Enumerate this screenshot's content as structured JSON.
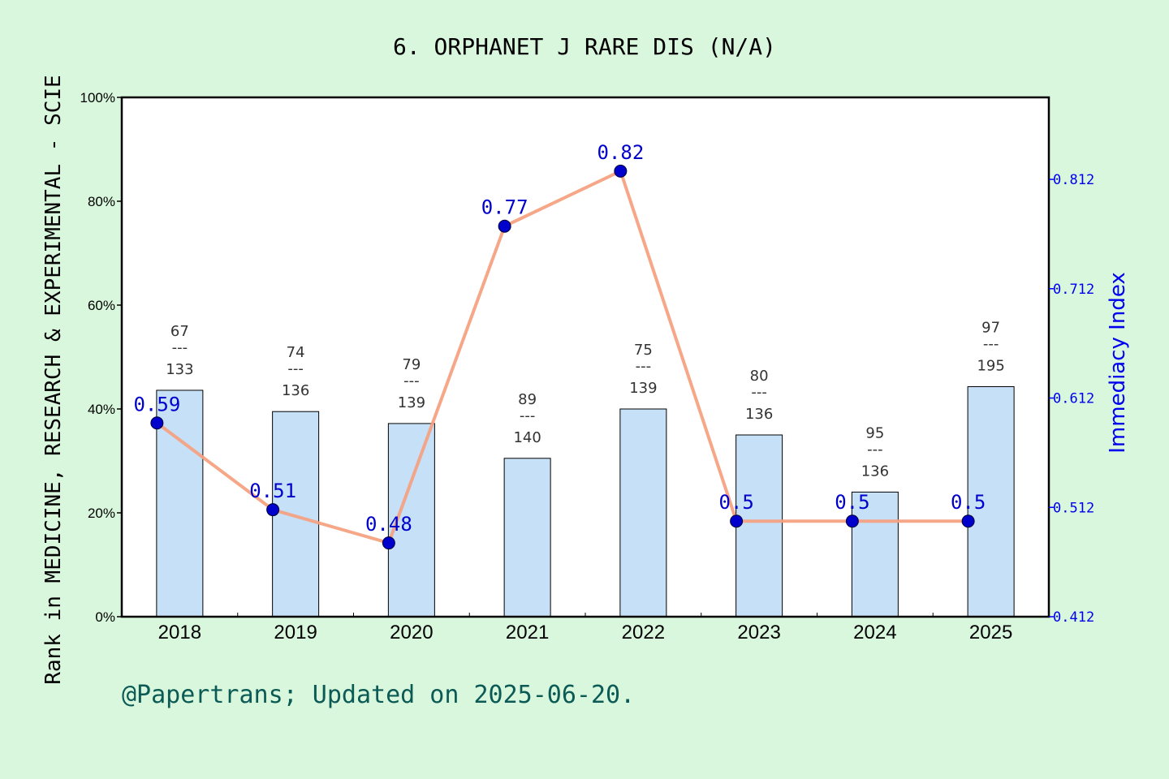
{
  "chart_data": {
    "type": "bar",
    "title": "6. ORPHANET J RARE DIS (N/A)",
    "ylabel": "Rank in MEDICINE, RESEARCH & EXPERIMENTAL - SCIE",
    "y2label": "Immediacy Index",
    "categories": [
      "2018",
      "2019",
      "2020",
      "2021",
      "2022",
      "2023",
      "2024",
      "2025"
    ],
    "ylim": [
      0,
      100
    ],
    "yticks": [
      "0%",
      "20%",
      "40%",
      "60%",
      "80%",
      "100%"
    ],
    "y2lim": [
      0.412,
      0.887
    ],
    "y2ticks": [
      "0.412",
      "0.512",
      "0.612",
      "0.712",
      "0.812"
    ],
    "series": [
      {
        "type": "bar",
        "color": "#c5e0f7",
        "values": [
          43.6,
          39.5,
          37.2,
          30.5,
          40.0,
          35.0,
          24.0,
          44.3
        ],
        "rank_labels": [
          {
            "rank": "67",
            "sep": "---",
            "total": "133"
          },
          {
            "rank": "74",
            "sep": "---",
            "total": "136"
          },
          {
            "rank": "79",
            "sep": "---",
            "total": "139"
          },
          {
            "rank": "89",
            "sep": "---",
            "total": "140"
          },
          {
            "rank": "75",
            "sep": "---",
            "total": "139"
          },
          {
            "rank": "80",
            "sep": "---",
            "total": "136"
          },
          {
            "rank": "95",
            "sep": "---",
            "total": "136"
          },
          {
            "rank": "97",
            "sep": "---",
            "total": "195"
          }
        ]
      },
      {
        "type": "line",
        "color": "#f5a07e",
        "marker_color": "#0000cc",
        "axis": "right",
        "x": [
          "2018",
          "2019",
          "2020",
          "2021",
          "2022",
          "2023",
          "2024",
          "2025"
        ],
        "values": [
          0.59,
          0.51,
          0.48,
          0.77,
          0.82,
          0.5,
          0.5,
          0.5
        ],
        "point_positions_pct": [
          37.3,
          20.6,
          14.2,
          75.2,
          85.8,
          18.4,
          18.4,
          18.4
        ],
        "labels": [
          "0.59",
          "0.51",
          "0.48",
          "0.77",
          "0.82",
          "0.5",
          "0.5",
          "0.5"
        ]
      }
    ]
  },
  "footer": "@Papertrans; Updated on 2025-06-20."
}
